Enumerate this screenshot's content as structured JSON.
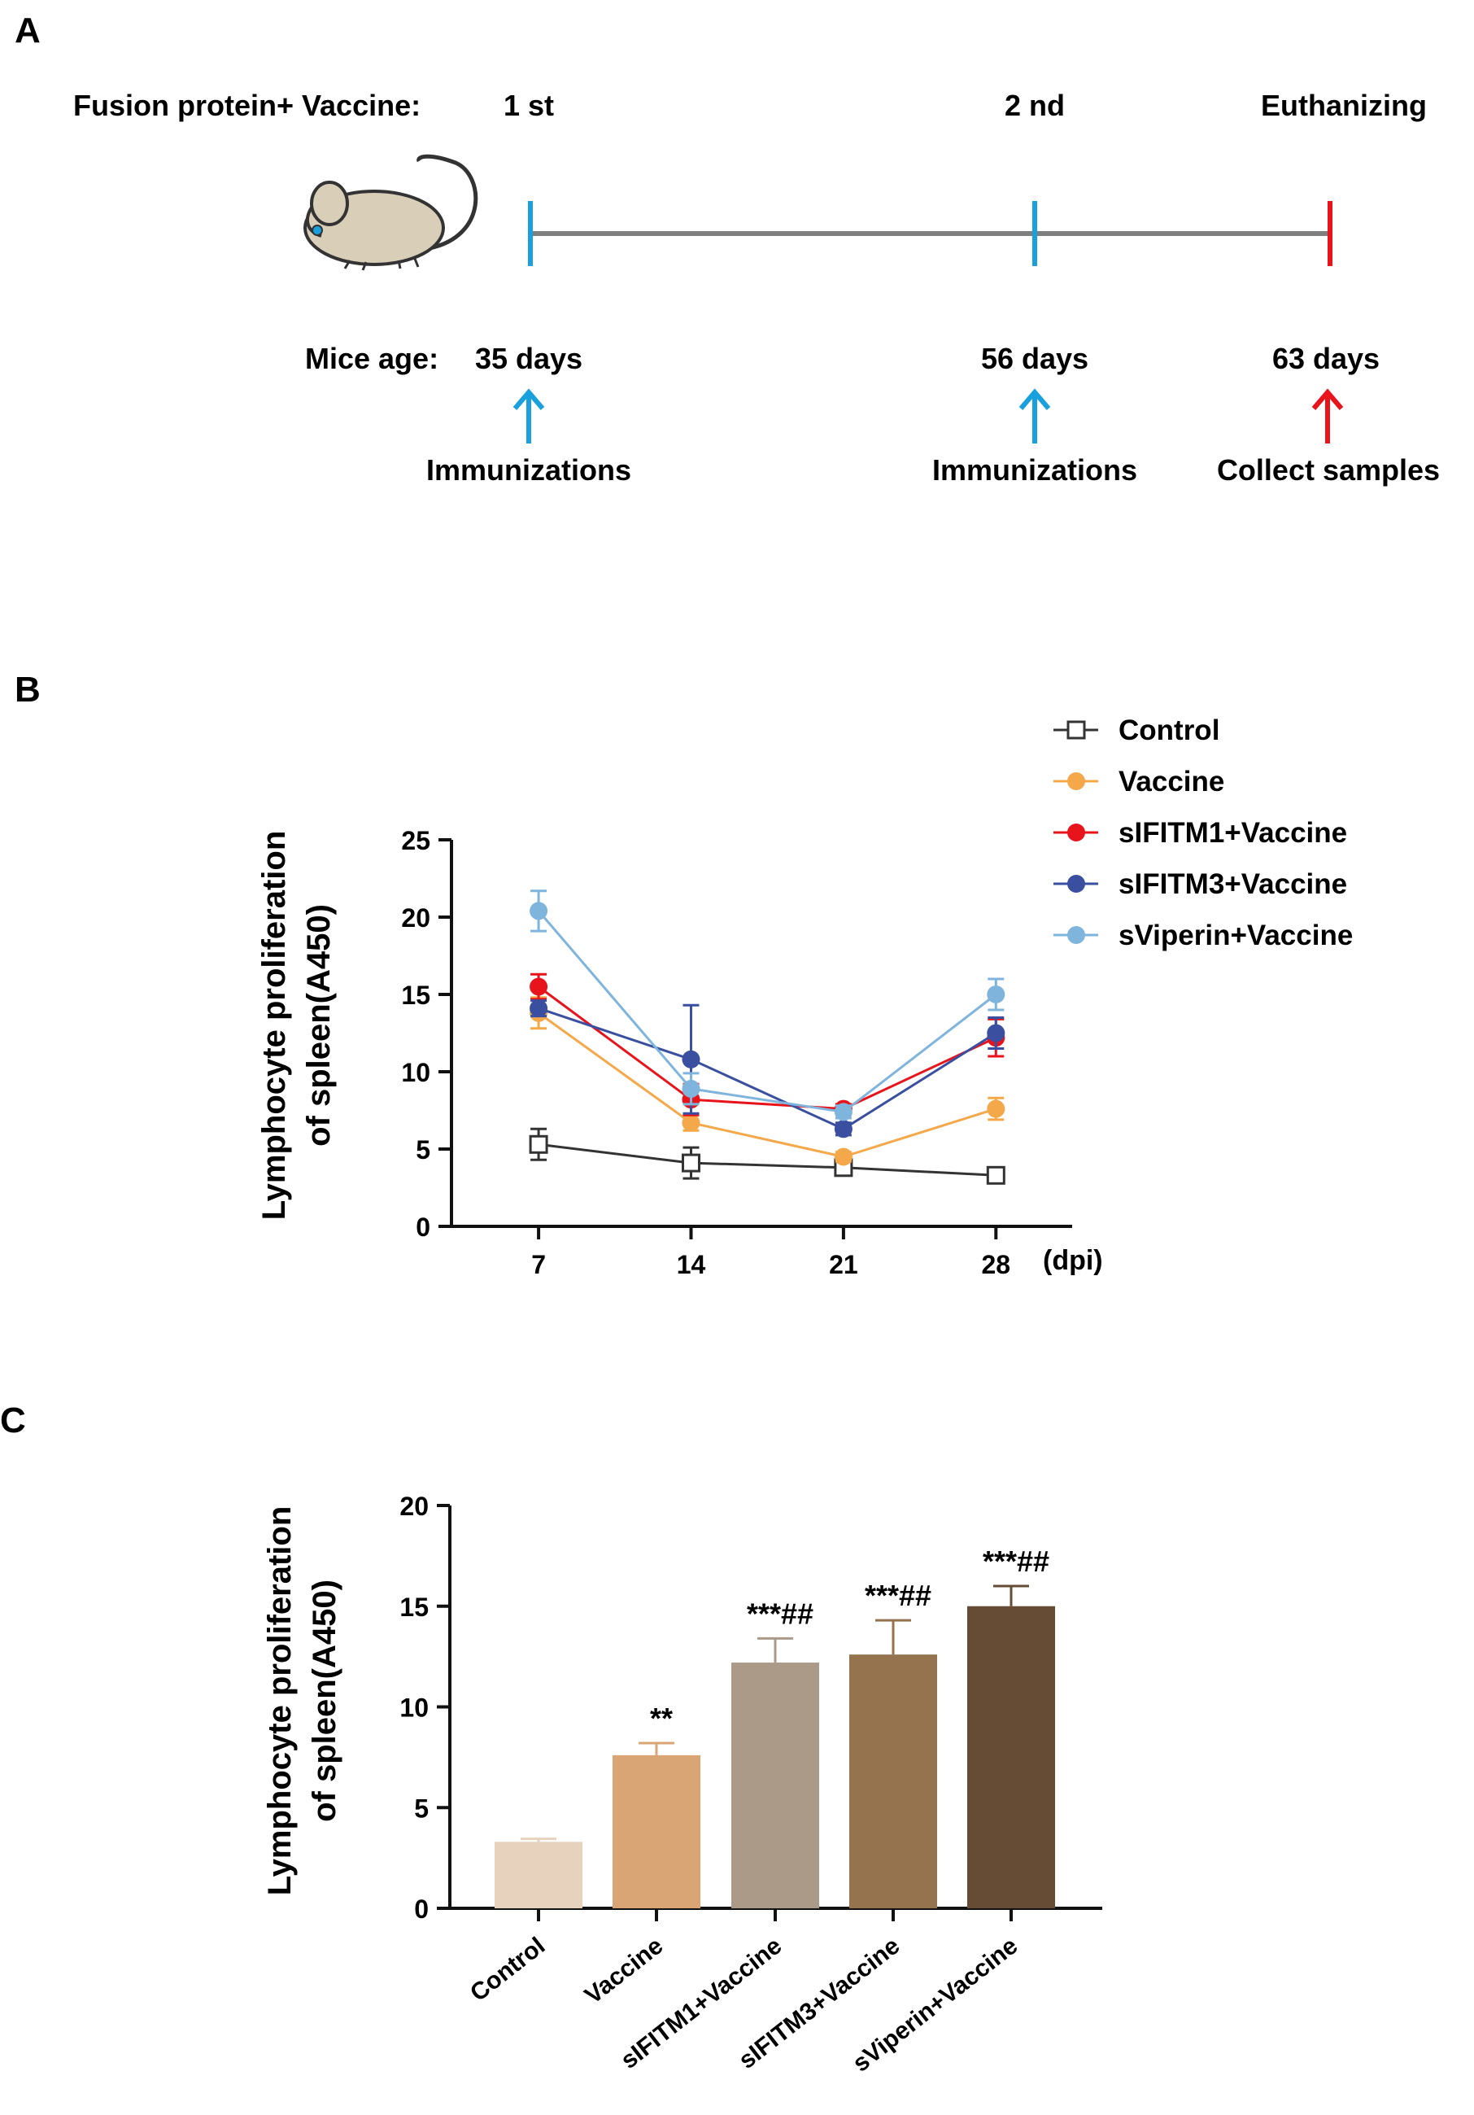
{
  "panel_a": {
    "label": "A",
    "schedule_label": "Fusion protein+ Vaccine:",
    "dose1": "1 st",
    "dose2": "2 nd",
    "endpoint": "Euthanizing",
    "age_label": "Mice age:",
    "age1": "35 days",
    "age2": "56 days",
    "age3": "63 days",
    "action1": "Immunizations",
    "action2": "Immunizations",
    "action3": "Collect samples",
    "colors": {
      "immunization": "#1aa0dc",
      "endpoint": "#e8141b",
      "timeline": "#7f7f7f",
      "mouse": "#d9cfb8"
    }
  },
  "chart_data": [
    {
      "type": "line",
      "panel_label": "B",
      "title": "",
      "ylabel_line1": "Lymphocyte proliferation",
      "ylabel_line2": "of spleen(A450)",
      "xlabel": "(dpi)",
      "x": [
        7,
        14,
        21,
        28
      ],
      "x_tick_labels": [
        "7",
        "14",
        "21",
        "28"
      ],
      "ylim": [
        0,
        25
      ],
      "y_ticks": [
        0,
        5,
        10,
        15,
        20,
        25
      ],
      "y_tick_labels": [
        "0",
        "5",
        "10",
        "15",
        "20",
        "25"
      ],
      "legend_position": "top-right",
      "series": [
        {
          "name": "Control",
          "marker": "open-square",
          "color": "#333333",
          "values": [
            5.3,
            4.1,
            3.8,
            3.3
          ],
          "errors": [
            1.0,
            1.0,
            0.4,
            0.3
          ]
        },
        {
          "name": "Vaccine",
          "marker": "circle",
          "color": "#f5a849",
          "values": [
            13.8,
            6.7,
            4.5,
            7.6
          ],
          "errors": [
            1.0,
            0.5,
            0.3,
            0.7
          ]
        },
        {
          "name": "sIFITM1+Vaccine",
          "marker": "circle",
          "color": "#e8141b",
          "values": [
            15.5,
            8.2,
            7.6,
            12.2
          ],
          "errors": [
            0.8,
            1.0,
            0.3,
            1.2
          ]
        },
        {
          "name": "sIFITM3+Vaccine",
          "marker": "circle",
          "color": "#3a4fa0",
          "values": [
            14.1,
            10.8,
            6.3,
            12.5
          ],
          "errors": [
            0.5,
            3.5,
            0.4,
            1.0
          ]
        },
        {
          "name": "sViperin+Vaccine",
          "marker": "circle",
          "color": "#7fb5dd",
          "values": [
            20.4,
            8.9,
            7.4,
            15.0
          ],
          "errors": [
            1.3,
            1.0,
            0.4,
            1.0
          ]
        }
      ]
    },
    {
      "type": "bar",
      "panel_label": "C",
      "title": "",
      "ylabel_line1": "Lymphocyte proliferation",
      "ylabel_line2": "of spleen(A450)",
      "xlabel": "",
      "categories": [
        "Control",
        "Vaccine",
        "sIFITM1+Vaccine",
        "sIFITM3+Vaccine",
        "sViperin+Vaccine"
      ],
      "values": [
        3.3,
        7.6,
        12.2,
        12.6,
        15.0
      ],
      "errors": [
        0.15,
        0.6,
        1.2,
        1.7,
        1.0
      ],
      "significance": [
        "",
        "**",
        "***##",
        "***##",
        "***##"
      ],
      "colors": [
        "#e6d2bd",
        "#d9a574",
        "#ab9a88",
        "#95734f",
        "#674c35"
      ],
      "ylim": [
        0,
        20
      ],
      "y_ticks": [
        0,
        5,
        10,
        15,
        20
      ],
      "y_tick_labels": [
        "0",
        "5",
        "10",
        "15",
        "20"
      ]
    }
  ]
}
